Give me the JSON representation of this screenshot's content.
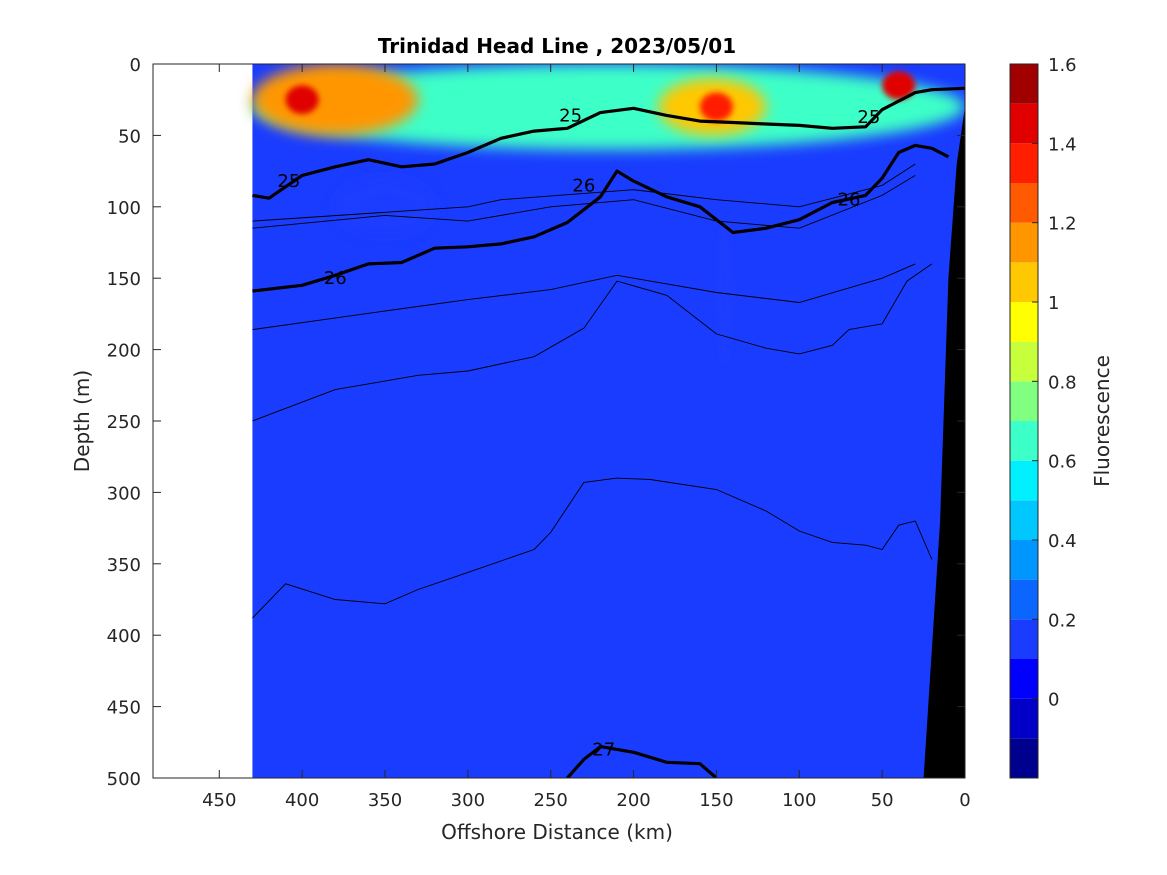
{
  "chart_data": {
    "type": "heatmap",
    "title": "Trinidad Head Line , 2023/05/01",
    "xlabel": "Offshore Distance (km)",
    "ylabel": "Depth (m)",
    "xlim": [
      490,
      0
    ],
    "ylim": [
      500,
      0
    ],
    "x_reversed": true,
    "y_reversed": true,
    "x_ticks": [
      "450",
      "400",
      "350",
      "300",
      "250",
      "200",
      "150",
      "100",
      "50",
      "0"
    ],
    "y_ticks": [
      "0",
      "50",
      "100",
      "150",
      "200",
      "250",
      "300",
      "350",
      "400",
      "450",
      "500"
    ],
    "data_extent_x": [
      430,
      0
    ],
    "colorbar": {
      "label": "Fluorescence",
      "range": [
        -0.2,
        1.6
      ],
      "ticks": [
        "0",
        "0.2",
        "0.4",
        "0.6",
        "0.8",
        "1",
        "1.2",
        "1.4",
        "1.6"
      ],
      "levels": [
        -0.2,
        -0.1,
        0,
        0.1,
        0.2,
        0.3,
        0.4,
        0.5,
        0.6,
        0.7,
        0.8,
        0.9,
        1.0,
        1.1,
        1.2,
        1.3,
        1.4,
        1.5,
        1.6
      ],
      "colors": [
        "#00008f",
        "#0000c8",
        "#0000ff",
        "#1a3cff",
        "#0a66ff",
        "#0096ff",
        "#00c8ff",
        "#00f0ff",
        "#3dffc8",
        "#80ff80",
        "#c8ff3d",
        "#ffff00",
        "#ffc800",
        "#ff9600",
        "#ff5a00",
        "#ff1e00",
        "#e00000",
        "#a00000"
      ]
    },
    "fluorescence_fields": [
      {
        "region": "background_deep",
        "value": 0.15
      },
      {
        "region": "near_surface_band",
        "x": [
          430,
          0
        ],
        "depth": [
          0,
          60
        ],
        "value": 0.6
      },
      {
        "region": "surface_patch",
        "x": [
          430,
          330
        ],
        "depth": [
          0,
          50
        ],
        "value": 1.1
      },
      {
        "region": "surface_peak",
        "x": [
          410,
          390
        ],
        "depth": [
          15,
          35
        ],
        "value": 1.45
      },
      {
        "region": "surface_patch",
        "x": [
          185,
          120
        ],
        "depth": [
          10,
          50
        ],
        "value": 1.05
      },
      {
        "region": "surface_peak",
        "x": [
          160,
          140
        ],
        "depth": [
          20,
          40
        ],
        "value": 1.3
      },
      {
        "region": "surface_peak",
        "x": [
          50,
          30
        ],
        "depth": [
          5,
          25
        ],
        "value": 1.4
      },
      {
        "region": "subsurface_minimum",
        "x": [
          380,
          320
        ],
        "depth": [
          80,
          120
        ],
        "value": 0.1
      },
      {
        "region": "subsurface_minimum",
        "x": [
          150,
          140
        ],
        "depth": [
          110,
          210
        ],
        "value": 0.1
      }
    ],
    "series": [
      {
        "name": "25",
        "x": [
          430,
          420,
          400,
          380,
          360,
          340,
          320,
          300,
          280,
          260,
          240,
          220,
          200,
          180,
          160,
          140,
          120,
          100,
          80,
          60,
          50,
          40,
          30,
          20,
          0
        ],
        "y": [
          92,
          94,
          78,
          72,
          67,
          72,
          70,
          62,
          52,
          47,
          45,
          34,
          31,
          36,
          40,
          41,
          42,
          43,
          45,
          44,
          32,
          26,
          20,
          18,
          17
        ]
      },
      {
        "name": "26",
        "x": [
          430,
          400,
          380,
          360,
          340,
          320,
          300,
          280,
          260,
          240,
          220,
          210,
          200,
          180,
          160,
          140,
          120,
          100,
          80,
          60,
          50,
          40,
          30,
          20,
          10
        ],
        "y": [
          159,
          155,
          148,
          140,
          139,
          129,
          128,
          126,
          121,
          111,
          93,
          75,
          82,
          93,
          100,
          118,
          115,
          109,
          97,
          92,
          80,
          62,
          57,
          59,
          65
        ]
      },
      {
        "name": "27",
        "x": [
          240,
          230,
          220,
          200,
          180,
          160,
          150
        ],
        "y": [
          500,
          487,
          478,
          482,
          489,
          490,
          500
        ]
      }
    ],
    "thin_contours": [
      {
        "x": [
          430,
          300,
          280,
          200,
          150,
          100,
          50,
          30
        ],
        "y": [
          110,
          100,
          95,
          88,
          95,
          100,
          85,
          70
        ]
      },
      {
        "x": [
          430,
          350,
          300,
          250,
          200,
          150,
          100,
          50,
          30
        ],
        "y": [
          115,
          106,
          110,
          100,
          95,
          110,
          115,
          92,
          78
        ]
      },
      {
        "x": [
          430,
          350,
          300,
          250,
          210,
          150,
          100,
          50,
          30
        ],
        "y": [
          186,
          173,
          165,
          158,
          148,
          160,
          167,
          150,
          140
        ]
      },
      {
        "x": [
          430,
          380,
          330,
          300,
          260,
          230,
          210,
          180,
          150,
          120,
          100,
          80,
          70,
          50,
          35,
          20
        ],
        "y": [
          250,
          228,
          218,
          215,
          205,
          185,
          152,
          162,
          189,
          199,
          203,
          197,
          186,
          182,
          152,
          140
        ]
      },
      {
        "x": [
          430,
          410,
          380,
          350,
          330,
          300,
          260,
          250,
          230,
          210,
          190,
          150,
          120,
          100,
          80,
          60,
          50,
          40,
          30,
          20
        ],
        "y": [
          388,
          364,
          375,
          378,
          368,
          356,
          340,
          328,
          293,
          290,
          291,
          298,
          313,
          327,
          335,
          337,
          340,
          323,
          320,
          347
        ]
      }
    ],
    "contour_labels": [
      {
        "text": "25",
        "x": 408,
        "y": 82
      },
      {
        "text": "25",
        "x": 238,
        "y": 36
      },
      {
        "text": "25",
        "x": 58,
        "y": 37
      },
      {
        "text": "26",
        "x": 380,
        "y": 150
      },
      {
        "text": "26",
        "x": 230,
        "y": 85
      },
      {
        "text": "26",
        "x": 70,
        "y": 95
      },
      {
        "text": "27",
        "x": 218,
        "y": 480
      }
    ],
    "bathymetry": {
      "x": [
        25,
        15,
        10,
        5,
        0,
        0
      ],
      "y": [
        500,
        320,
        150,
        70,
        30,
        500
      ]
    },
    "grid": false
  }
}
